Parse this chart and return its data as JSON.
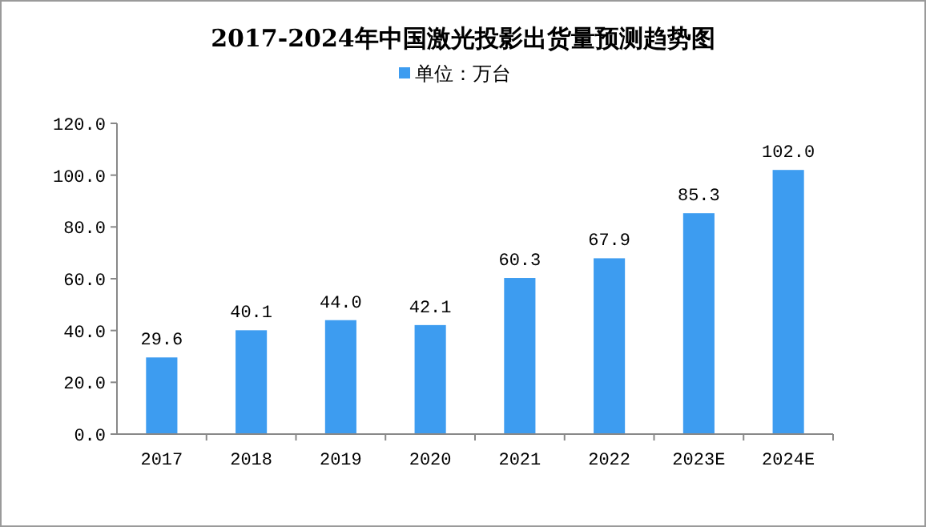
{
  "chart_data": {
    "type": "bar",
    "title": "2017-2024年中国激光投影出货量预测趋势图",
    "categories": [
      "2017",
      "2018",
      "2019",
      "2020",
      "2021",
      "2022",
      "2023E",
      "2024E"
    ],
    "series": [
      {
        "name": "单位：万台",
        "color": "#3d9cf0",
        "values": [
          29.6,
          40.1,
          44.0,
          42.1,
          60.3,
          67.9,
          85.3,
          102.0
        ]
      }
    ],
    "ylim": [
      0,
      120
    ],
    "yticks": [
      {
        "value": 0,
        "label": "0.0"
      },
      {
        "value": 20,
        "label": "20.0"
      },
      {
        "value": 40,
        "label": "40.0"
      },
      {
        "value": 60,
        "label": "60.0"
      },
      {
        "value": 80,
        "label": "80.0"
      },
      {
        "value": 100,
        "label": "100.0"
      },
      {
        "value": 120,
        "label": "120.0"
      }
    ],
    "value_labels": [
      "29.6",
      "40.1",
      "44.0",
      "42.1",
      "60.3",
      "67.9",
      "85.3",
      "102.0"
    ],
    "legend": "top",
    "grid": false
  }
}
